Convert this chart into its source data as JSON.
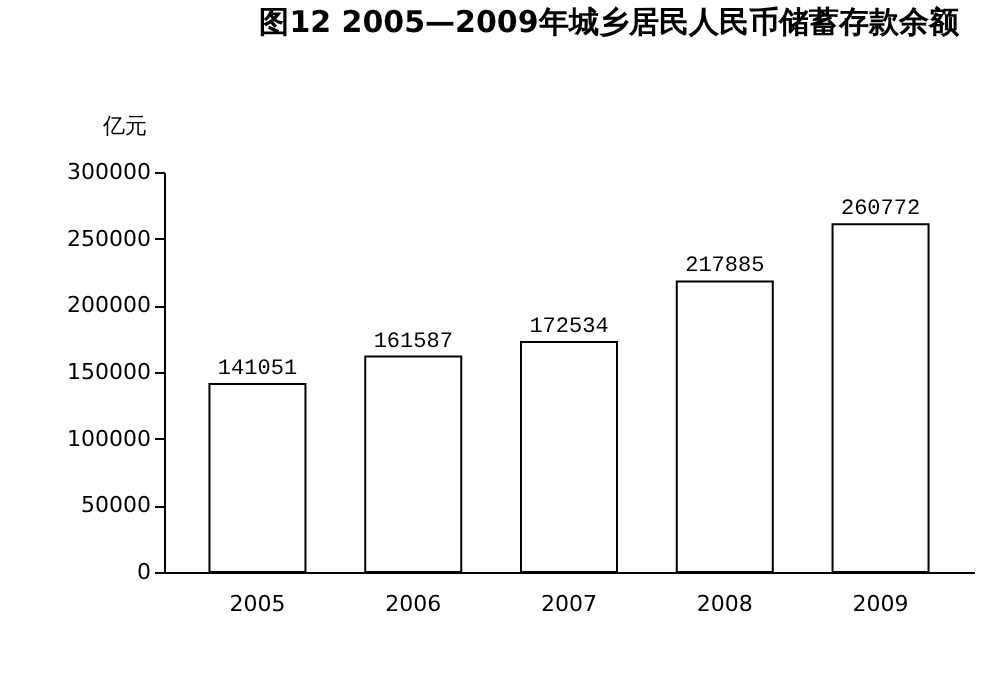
{
  "chart_data": {
    "type": "bar",
    "title": "图12 2005—2009年城乡居民人民币储蓄存款余额",
    "ylabel": "亿元",
    "categories": [
      "2005",
      "2006",
      "2007",
      "2008",
      "2009"
    ],
    "values": [
      141051,
      161587,
      172534,
      217885,
      260772
    ],
    "color": "#ffffff",
    "ylim": [
      0,
      300000
    ],
    "yticks": [
      0,
      50000,
      100000,
      150000,
      200000,
      250000,
      300000
    ],
    "data_labels": true,
    "grid": false
  }
}
